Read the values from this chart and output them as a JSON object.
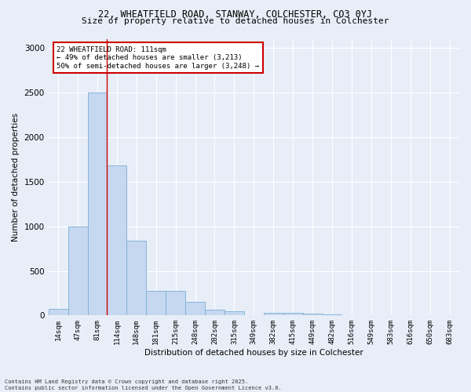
{
  "title_line1": "22, WHEATFIELD ROAD, STANWAY, COLCHESTER, CO3 0YJ",
  "title_line2": "Size of property relative to detached houses in Colchester",
  "xlabel": "Distribution of detached houses by size in Colchester",
  "ylabel": "Number of detached properties",
  "categories": [
    "14sqm",
    "47sqm",
    "81sqm",
    "114sqm",
    "148sqm",
    "181sqm",
    "215sqm",
    "248sqm",
    "282sqm",
    "315sqm",
    "349sqm",
    "382sqm",
    "415sqm",
    "449sqm",
    "482sqm",
    "516sqm",
    "549sqm",
    "583sqm",
    "616sqm",
    "650sqm",
    "683sqm"
  ],
  "values": [
    75,
    1000,
    2500,
    1680,
    840,
    280,
    280,
    155,
    65,
    50,
    0,
    30,
    25,
    20,
    15,
    0,
    0,
    0,
    0,
    0,
    0
  ],
  "bar_color": "#c5d8f0",
  "bar_edgecolor": "#7aadd4",
  "annotation_line1": "22 WHEATFIELD ROAD: 111sqm",
  "annotation_line2": "← 49% of detached houses are smaller (3,213)",
  "annotation_line3": "50% of semi-detached houses are larger (3,248) →",
  "vline_color": "#cc0000",
  "vline_x": 2.5,
  "annotation_box_facecolor": "#ffffff",
  "annotation_box_edgecolor": "#cc0000",
  "background_color": "#e8eef8",
  "ylim": [
    0,
    3100
  ],
  "yticks": [
    0,
    500,
    1000,
    1500,
    2000,
    2500,
    3000
  ],
  "footer_line1": "Contains HM Land Registry data © Crown copyright and database right 2025.",
  "footer_line2": "Contains public sector information licensed under the Open Government Licence v3.0."
}
